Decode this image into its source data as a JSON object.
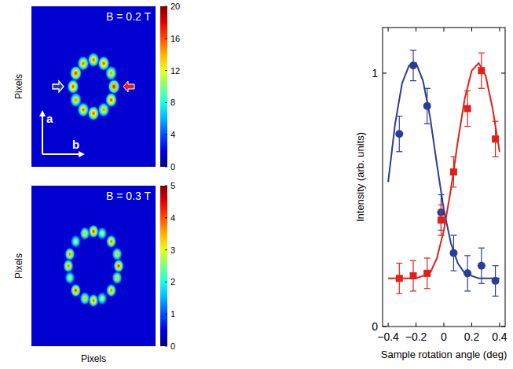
{
  "chart_data": [
    {
      "type": "heatmap",
      "title": "B = 0.2 T",
      "y_label": "Pixels",
      "annotations": [
        "a",
        "b"
      ],
      "tick_labels": false,
      "spots": {
        "angles": [
          0,
          30,
          60,
          90,
          120,
          150,
          180,
          210,
          240,
          270,
          300,
          330
        ],
        "values": [
          19,
          15,
          17,
          16,
          16,
          18,
          17,
          15,
          16,
          17,
          15,
          17
        ]
      },
      "colorbar": {
        "range": [
          0,
          20
        ],
        "ticks": [
          0,
          4,
          8,
          12,
          16,
          20
        ]
      }
    },
    {
      "type": "heatmap",
      "title": "B = 0.3 T",
      "x_label": "Pixels",
      "y_label": "Pixels",
      "tick_labels": false,
      "spots": {
        "angles": [
          0,
          20,
          45,
          70,
          90,
          110,
          135,
          160,
          180,
          200,
          225,
          250,
          270,
          290,
          315,
          340
        ],
        "values": [
          4.5,
          3.5,
          4,
          3,
          4.5,
          3.5,
          3,
          4,
          4,
          3,
          4.5,
          3.5,
          4,
          3,
          4,
          3.5
        ]
      },
      "colorbar": {
        "range": [
          0,
          5
        ],
        "ticks": [
          0,
          1,
          2,
          3,
          4,
          5
        ]
      }
    },
    {
      "type": "scatter",
      "x_label": "Sample rotation angle (deg)",
      "y_label": "Intensity (arb. units)",
      "xlim": [
        -0.44,
        0.44
      ],
      "ylim": [
        0,
        1.18
      ],
      "xticks": [
        {
          "value": -0.4,
          "label": "−0.4"
        },
        {
          "value": -0.2,
          "label": "−0.2"
        },
        0,
        0.2,
        0.4
      ],
      "yticks": [
        0,
        1
      ],
      "series": [
        {
          "type": "scatter",
          "color": "#2b3d96",
          "marker": "circle",
          "x": [
            -0.32,
            -0.22,
            -0.12,
            -0.02,
            0.07,
            0.17,
            0.27,
            0.37
          ],
          "values": [
            0.76,
            1.03,
            0.87,
            0.45,
            0.29,
            0.21,
            0.24,
            0.18
          ],
          "errors": [
            0.07,
            0.06,
            0.07,
            0.07,
            0.07,
            0.07,
            0.07,
            0.06
          ]
        },
        {
          "type": "line",
          "color": "#2b3d96",
          "x": [
            -0.4,
            -0.35,
            -0.3,
            -0.25,
            -0.2,
            -0.15,
            -0.1,
            -0.05,
            0,
            0.05,
            0.1,
            0.15,
            0.2,
            0.25,
            0.3,
            0.35,
            0.4
          ],
          "values": [
            0.57,
            0.8,
            0.96,
            1.03,
            1.04,
            0.97,
            0.83,
            0.64,
            0.46,
            0.33,
            0.25,
            0.21,
            0.2,
            0.19,
            0.19,
            0.19,
            0.19
          ]
        },
        {
          "type": "scatter",
          "color": "#e0201b",
          "marker": "square",
          "x": [
            -0.32,
            -0.22,
            -0.12,
            -0.02,
            0.07,
            0.17,
            0.27,
            0.37
          ],
          "values": [
            0.19,
            0.2,
            0.21,
            0.42,
            0.61,
            0.86,
            1.01,
            0.74
          ],
          "errors": [
            0.06,
            0.06,
            0.06,
            0.06,
            0.06,
            0.07,
            0.07,
            0.07
          ]
        },
        {
          "type": "line",
          "color": "#e0201b",
          "x": [
            -0.4,
            -0.35,
            -0.3,
            -0.25,
            -0.2,
            -0.15,
            -0.1,
            -0.05,
            0,
            0.05,
            0.1,
            0.15,
            0.2,
            0.25,
            0.3,
            0.35,
            0.4
          ],
          "values": [
            0.19,
            0.19,
            0.19,
            0.19,
            0.19,
            0.2,
            0.21,
            0.27,
            0.38,
            0.54,
            0.73,
            0.9,
            1.01,
            1.04,
            0.99,
            0.86,
            0.69
          ]
        }
      ]
    }
  ]
}
